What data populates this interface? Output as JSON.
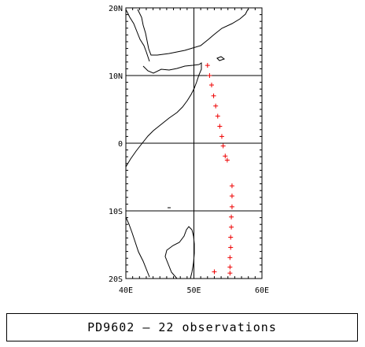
{
  "map": {
    "lat_labels": [
      "20N",
      "10N",
      "0",
      "10S",
      "20S"
    ],
    "lon_labels": [
      "40E",
      "50E",
      "60E"
    ],
    "lon_range": [
      40,
      60
    ],
    "lat_range": [
      -20,
      20
    ],
    "track_color": "#ee0000",
    "line_color": "#000000",
    "observation_marker": "plus-marker",
    "observations": [
      {
        "lon": 52.0,
        "lat": 11.5
      },
      {
        "lon": 52.3,
        "lat": 10.0
      },
      {
        "lon": 52.6,
        "lat": 8.6
      },
      {
        "lon": 52.9,
        "lat": 7.0
      },
      {
        "lon": 53.2,
        "lat": 5.5
      },
      {
        "lon": 53.5,
        "lat": 4.0
      },
      {
        "lon": 53.8,
        "lat": 2.5
      },
      {
        "lon": 54.1,
        "lat": 1.0
      },
      {
        "lon": 54.3,
        "lat": -0.4
      },
      {
        "lon": 54.6,
        "lat": -1.9
      },
      {
        "lon": 54.9,
        "lat": -2.5
      },
      {
        "lon": 55.6,
        "lat": -6.3
      },
      {
        "lon": 55.6,
        "lat": -7.8
      },
      {
        "lon": 55.6,
        "lat": -9.4
      },
      {
        "lon": 55.5,
        "lat": -10.9
      },
      {
        "lon": 55.5,
        "lat": -12.4
      },
      {
        "lon": 55.4,
        "lat": -13.9
      },
      {
        "lon": 55.4,
        "lat": -15.4
      },
      {
        "lon": 55.3,
        "lat": -16.9
      },
      {
        "lon": 55.3,
        "lat": -18.3
      },
      {
        "lon": 53.0,
        "lat": -19.0
      },
      {
        "lon": 55.3,
        "lat": -19.2
      }
    ]
  },
  "caption": {
    "text": "PD9602 — 22 observations"
  }
}
